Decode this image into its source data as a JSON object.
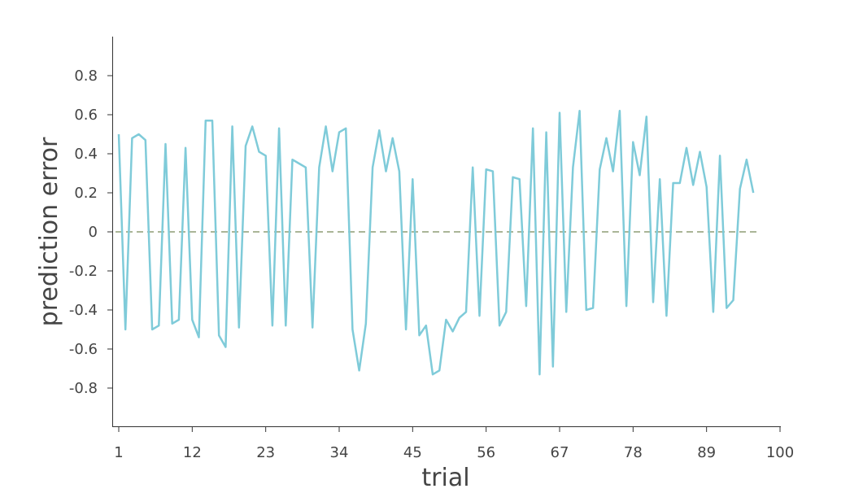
{
  "chart_data": {
    "type": "line",
    "xlabel": "trial",
    "ylabel": "prediction error",
    "xlim": [
      0,
      100
    ],
    "ylim": [
      -1.0,
      1.0
    ],
    "xticks": [
      1,
      12,
      23,
      34,
      45,
      56,
      67,
      78,
      89,
      100
    ],
    "xtick_labels": [
      "1",
      "12",
      "23",
      "34",
      "45",
      "56",
      "67",
      "78",
      "89",
      "100"
    ],
    "yticks": [
      -0.8,
      -0.6,
      -0.4,
      -0.2,
      0,
      0.2,
      0.4,
      0.6,
      0.8
    ],
    "ytick_labels": [
      "-0.8",
      "-0.6",
      "-0.4",
      "-0.2",
      "0",
      "0.2",
      "0.4",
      "0.6",
      "0.8"
    ],
    "grid": false,
    "reference_line": {
      "y": 0,
      "style": "dashed",
      "color": "#556b2f"
    },
    "series": [
      {
        "color": "#7fcbd9",
        "x": [
          1,
          2,
          3,
          4,
          5,
          6,
          7,
          8,
          9,
          10,
          11,
          12,
          13,
          14,
          15,
          16,
          17,
          18,
          19,
          20,
          21,
          22,
          23,
          24,
          25,
          26,
          27,
          28,
          29,
          30,
          31,
          32,
          33,
          34,
          35,
          36,
          37,
          38,
          39,
          40,
          41,
          42,
          43,
          44,
          45,
          46,
          47,
          48,
          49,
          50,
          51,
          52,
          53,
          54,
          55,
          56,
          57,
          58,
          59,
          60,
          61,
          62,
          63,
          64,
          65,
          66,
          67,
          68,
          69,
          70,
          71,
          72,
          73,
          74,
          75,
          76,
          77,
          78,
          79,
          80,
          81,
          82,
          83,
          84,
          85,
          86,
          87,
          88,
          89,
          90,
          91,
          92,
          93,
          94,
          95,
          96
        ],
        "values": [
          0.5,
          -0.5,
          0.48,
          0.5,
          0.47,
          -0.5,
          -0.48,
          0.45,
          -0.47,
          -0.45,
          0.43,
          -0.45,
          -0.54,
          0.57,
          0.57,
          -0.53,
          -0.59,
          0.54,
          -0.49,
          0.44,
          0.54,
          0.41,
          0.39,
          -0.48,
          0.53,
          -0.48,
          0.37,
          0.35,
          0.33,
          -0.49,
          0.33,
          0.54,
          0.31,
          0.51,
          0.53,
          -0.5,
          -0.71,
          -0.47,
          0.33,
          0.52,
          0.31,
          0.48,
          0.31,
          -0.5,
          0.27,
          -0.53,
          -0.48,
          -0.73,
          -0.71,
          -0.45,
          -0.51,
          -0.44,
          -0.41,
          0.33,
          -0.43,
          0.32,
          0.31,
          -0.48,
          -0.41,
          0.28,
          0.27,
          -0.38,
          0.53,
          -0.73,
          0.51,
          -0.69,
          0.61,
          -0.41,
          0.33,
          0.62,
          -0.4,
          -0.39,
          0.32,
          0.48,
          0.31,
          0.62,
          -0.38,
          0.46,
          0.29,
          0.59,
          -0.36,
          0.27,
          -0.43,
          0.25,
          0.25,
          0.43,
          0.24,
          0.41,
          0.23,
          -0.41,
          0.39,
          -0.39,
          -0.35,
          0.22,
          0.37,
          0.2
        ]
      }
    ]
  }
}
